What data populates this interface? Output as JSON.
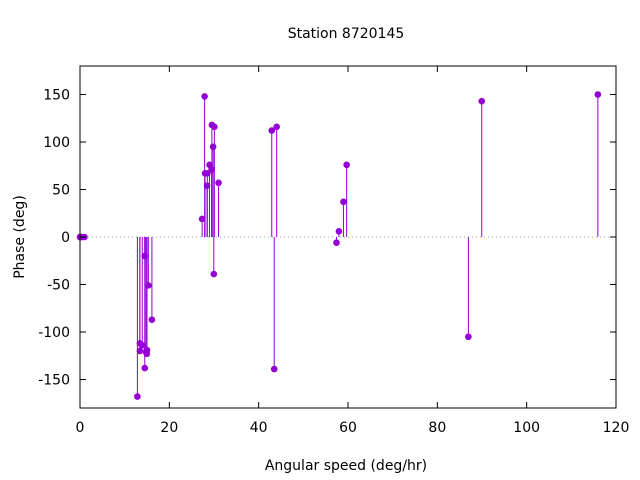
{
  "chart_data": {
    "type": "scatter",
    "style": "impulse-stem",
    "title": "Station 8720145",
    "xlabel": "Angular speed (deg/hr)",
    "ylabel": "Phase (deg)",
    "xlim": [
      0,
      120
    ],
    "ylim": [
      -180,
      180
    ],
    "xticks": [
      0,
      20,
      40,
      60,
      80,
      100,
      120
    ],
    "yticks": [
      -150,
      -100,
      -50,
      0,
      50,
      100,
      150
    ],
    "xtick_labels": [
      "0",
      "20",
      "40",
      "60",
      "80",
      "100",
      "120"
    ],
    "ytick_labels": [
      "-150",
      "-100",
      "-50",
      "0",
      "50",
      "100",
      "150"
    ],
    "zero_line": "dotted",
    "grid": false,
    "legend": "none",
    "series_color": "#9400d3",
    "series": [
      {
        "points": [
          {
            "x": 0.0,
            "y": 0
          },
          {
            "x": 0.04,
            "y": 0
          },
          {
            "x": 0.08,
            "y": 0
          },
          {
            "x": 0.5,
            "y": 0
          },
          {
            "x": 1.0,
            "y": 0
          },
          {
            "x": 12.85,
            "y": -168
          },
          {
            "x": 13.4,
            "y": -120
          },
          {
            "x": 13.4,
            "y": -112
          },
          {
            "x": 13.94,
            "y": -114
          },
          {
            "x": 14.5,
            "y": -20
          },
          {
            "x": 14.5,
            "y": -138
          },
          {
            "x": 14.75,
            "y": -121
          },
          {
            "x": 14.96,
            "y": -123
          },
          {
            "x": 15.0,
            "y": -119
          },
          {
            "x": 15.3,
            "y": -51
          },
          {
            "x": 16.1,
            "y": -87
          },
          {
            "x": 27.34,
            "y": 19
          },
          {
            "x": 27.9,
            "y": 148
          },
          {
            "x": 28.0,
            "y": 67
          },
          {
            "x": 28.44,
            "y": 54
          },
          {
            "x": 28.51,
            "y": 67
          },
          {
            "x": 29.0,
            "y": 76
          },
          {
            "x": 29.46,
            "y": 71
          },
          {
            "x": 29.53,
            "y": 118
          },
          {
            "x": 29.8,
            "y": 95
          },
          {
            "x": 29.96,
            "y": -39
          },
          {
            "x": 30.08,
            "y": 116
          },
          {
            "x": 31.02,
            "y": 57
          },
          {
            "x": 42.93,
            "y": 112
          },
          {
            "x": 43.48,
            "y": -139
          },
          {
            "x": 44.03,
            "y": 116
          },
          {
            "x": 57.42,
            "y": -6
          },
          {
            "x": 57.97,
            "y": 6
          },
          {
            "x": 58.98,
            "y": 37
          },
          {
            "x": 59.7,
            "y": 76
          },
          {
            "x": 86.95,
            "y": -105
          },
          {
            "x": 89.94,
            "y": 143
          },
          {
            "x": 115.94,
            "y": 150
          }
        ]
      }
    ]
  }
}
